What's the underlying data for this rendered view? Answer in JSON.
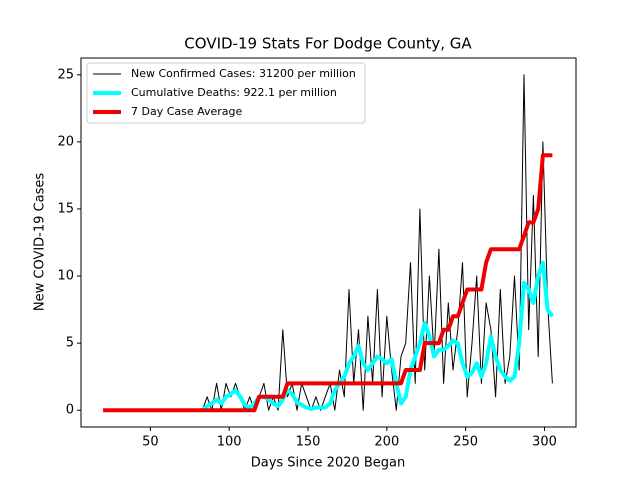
{
  "chart_data": {
    "type": "line",
    "title": "COVID-19 Stats For Dodge County, GA",
    "x_label": "Days Since 2020 Began",
    "y_label": "New COVID-19 Cases",
    "x": [
      20,
      23,
      26,
      29,
      32,
      35,
      38,
      41,
      44,
      47,
      50,
      53,
      56,
      59,
      62,
      65,
      68,
      71,
      74,
      77,
      80,
      83,
      86,
      89,
      92,
      95,
      98,
      101,
      104,
      107,
      110,
      113,
      116,
      119,
      122,
      125,
      128,
      131,
      134,
      137,
      140,
      143,
      146,
      149,
      152,
      155,
      158,
      161,
      164,
      167,
      170,
      173,
      176,
      179,
      182,
      185,
      188,
      191,
      194,
      197,
      200,
      203,
      206,
      209,
      212,
      215,
      218,
      221,
      224,
      227,
      230,
      233,
      236,
      239,
      242,
      245,
      248,
      251,
      254,
      257,
      260,
      263,
      266,
      269,
      272,
      275,
      278,
      281,
      284,
      287,
      290,
      293,
      296,
      299,
      302,
      305
    ],
    "series": [
      {
        "name": "New Confirmed Cases: 31200 per million",
        "color": "#000000",
        "width": 1,
        "values": [
          null,
          null,
          null,
          null,
          null,
          null,
          null,
          null,
          null,
          null,
          null,
          null,
          null,
          null,
          null,
          null,
          null,
          null,
          null,
          null,
          null,
          0,
          1,
          0,
          2,
          0,
          2,
          1,
          2,
          1,
          0,
          1,
          0,
          1,
          2,
          0,
          1,
          0,
          6,
          1,
          2,
          0,
          2,
          1,
          0,
          1,
          0,
          1,
          2,
          0,
          3,
          1,
          9,
          2,
          6,
          0,
          7,
          2,
          9,
          1,
          7,
          3,
          0,
          4,
          5,
          11,
          2,
          15,
          3,
          10,
          4,
          12,
          2,
          8,
          3,
          6,
          11,
          1,
          5,
          10,
          2,
          8,
          6,
          1,
          9,
          2,
          4,
          10,
          3,
          25,
          6,
          16,
          4,
          20,
          8,
          2
        ]
      },
      {
        "name": "Cumulative Deaths: 922.1 per million",
        "color": "#00ffff",
        "width": 4,
        "values": [
          null,
          null,
          null,
          null,
          null,
          null,
          null,
          null,
          null,
          null,
          null,
          null,
          null,
          null,
          null,
          null,
          null,
          null,
          null,
          null,
          null,
          0,
          0.3,
          0.5,
          0.8,
          0.5,
          1,
          1.2,
          1.5,
          1,
          0.4,
          0.2,
          0.5,
          1,
          1,
          0.8,
          0.5,
          0.3,
          0.8,
          1.5,
          1.2,
          0.6,
          0.4,
          0.2,
          0.1,
          0.2,
          0.2,
          0.2,
          0.5,
          1.5,
          2,
          2.5,
          3.5,
          4,
          4.8,
          3.5,
          3,
          3.5,
          4,
          3.8,
          3.5,
          3.8,
          2,
          0.5,
          1,
          3,
          4,
          5,
          6.5,
          5.5,
          4,
          4.5,
          4.5,
          4.8,
          5.2,
          5,
          3.5,
          2.5,
          2.8,
          3.5,
          2.5,
          3.5,
          5.5,
          4,
          3,
          2.5,
          2.2,
          2.5,
          5,
          9.5,
          9,
          8,
          10,
          11,
          7.5,
          7
        ]
      },
      {
        "name": "7 Day Case Average",
        "color": "#ee0000",
        "width": 4,
        "values": [
          0,
          0,
          0,
          0,
          0,
          0,
          0,
          0,
          0,
          0,
          0,
          0,
          0,
          0,
          0,
          0,
          0,
          0,
          0,
          0,
          0,
          0,
          0,
          0,
          0,
          0,
          0,
          0,
          0,
          0,
          0,
          0,
          0,
          1,
          1,
          1,
          1,
          1,
          1,
          2,
          2,
          2,
          2,
          2,
          2,
          2,
          2,
          2,
          2,
          2,
          2,
          2,
          2,
          2,
          2,
          2,
          2,
          2,
          2,
          2,
          2,
          2,
          2,
          2,
          3,
          3,
          3,
          3,
          5,
          5,
          5,
          5,
          6,
          6,
          7,
          7,
          8,
          9,
          9,
          9,
          9,
          11,
          12,
          12,
          12,
          12,
          12,
          12,
          12,
          13,
          14,
          14,
          15,
          19,
          19,
          19
        ]
      }
    ],
    "xlim": [
      6,
      320
    ],
    "ylim": [
      -1.25,
      26.25
    ],
    "xticks": [
      50,
      100,
      150,
      200,
      250,
      300
    ],
    "yticks": [
      0,
      5,
      10,
      15,
      20,
      25
    ],
    "legend": "upper left"
  }
}
